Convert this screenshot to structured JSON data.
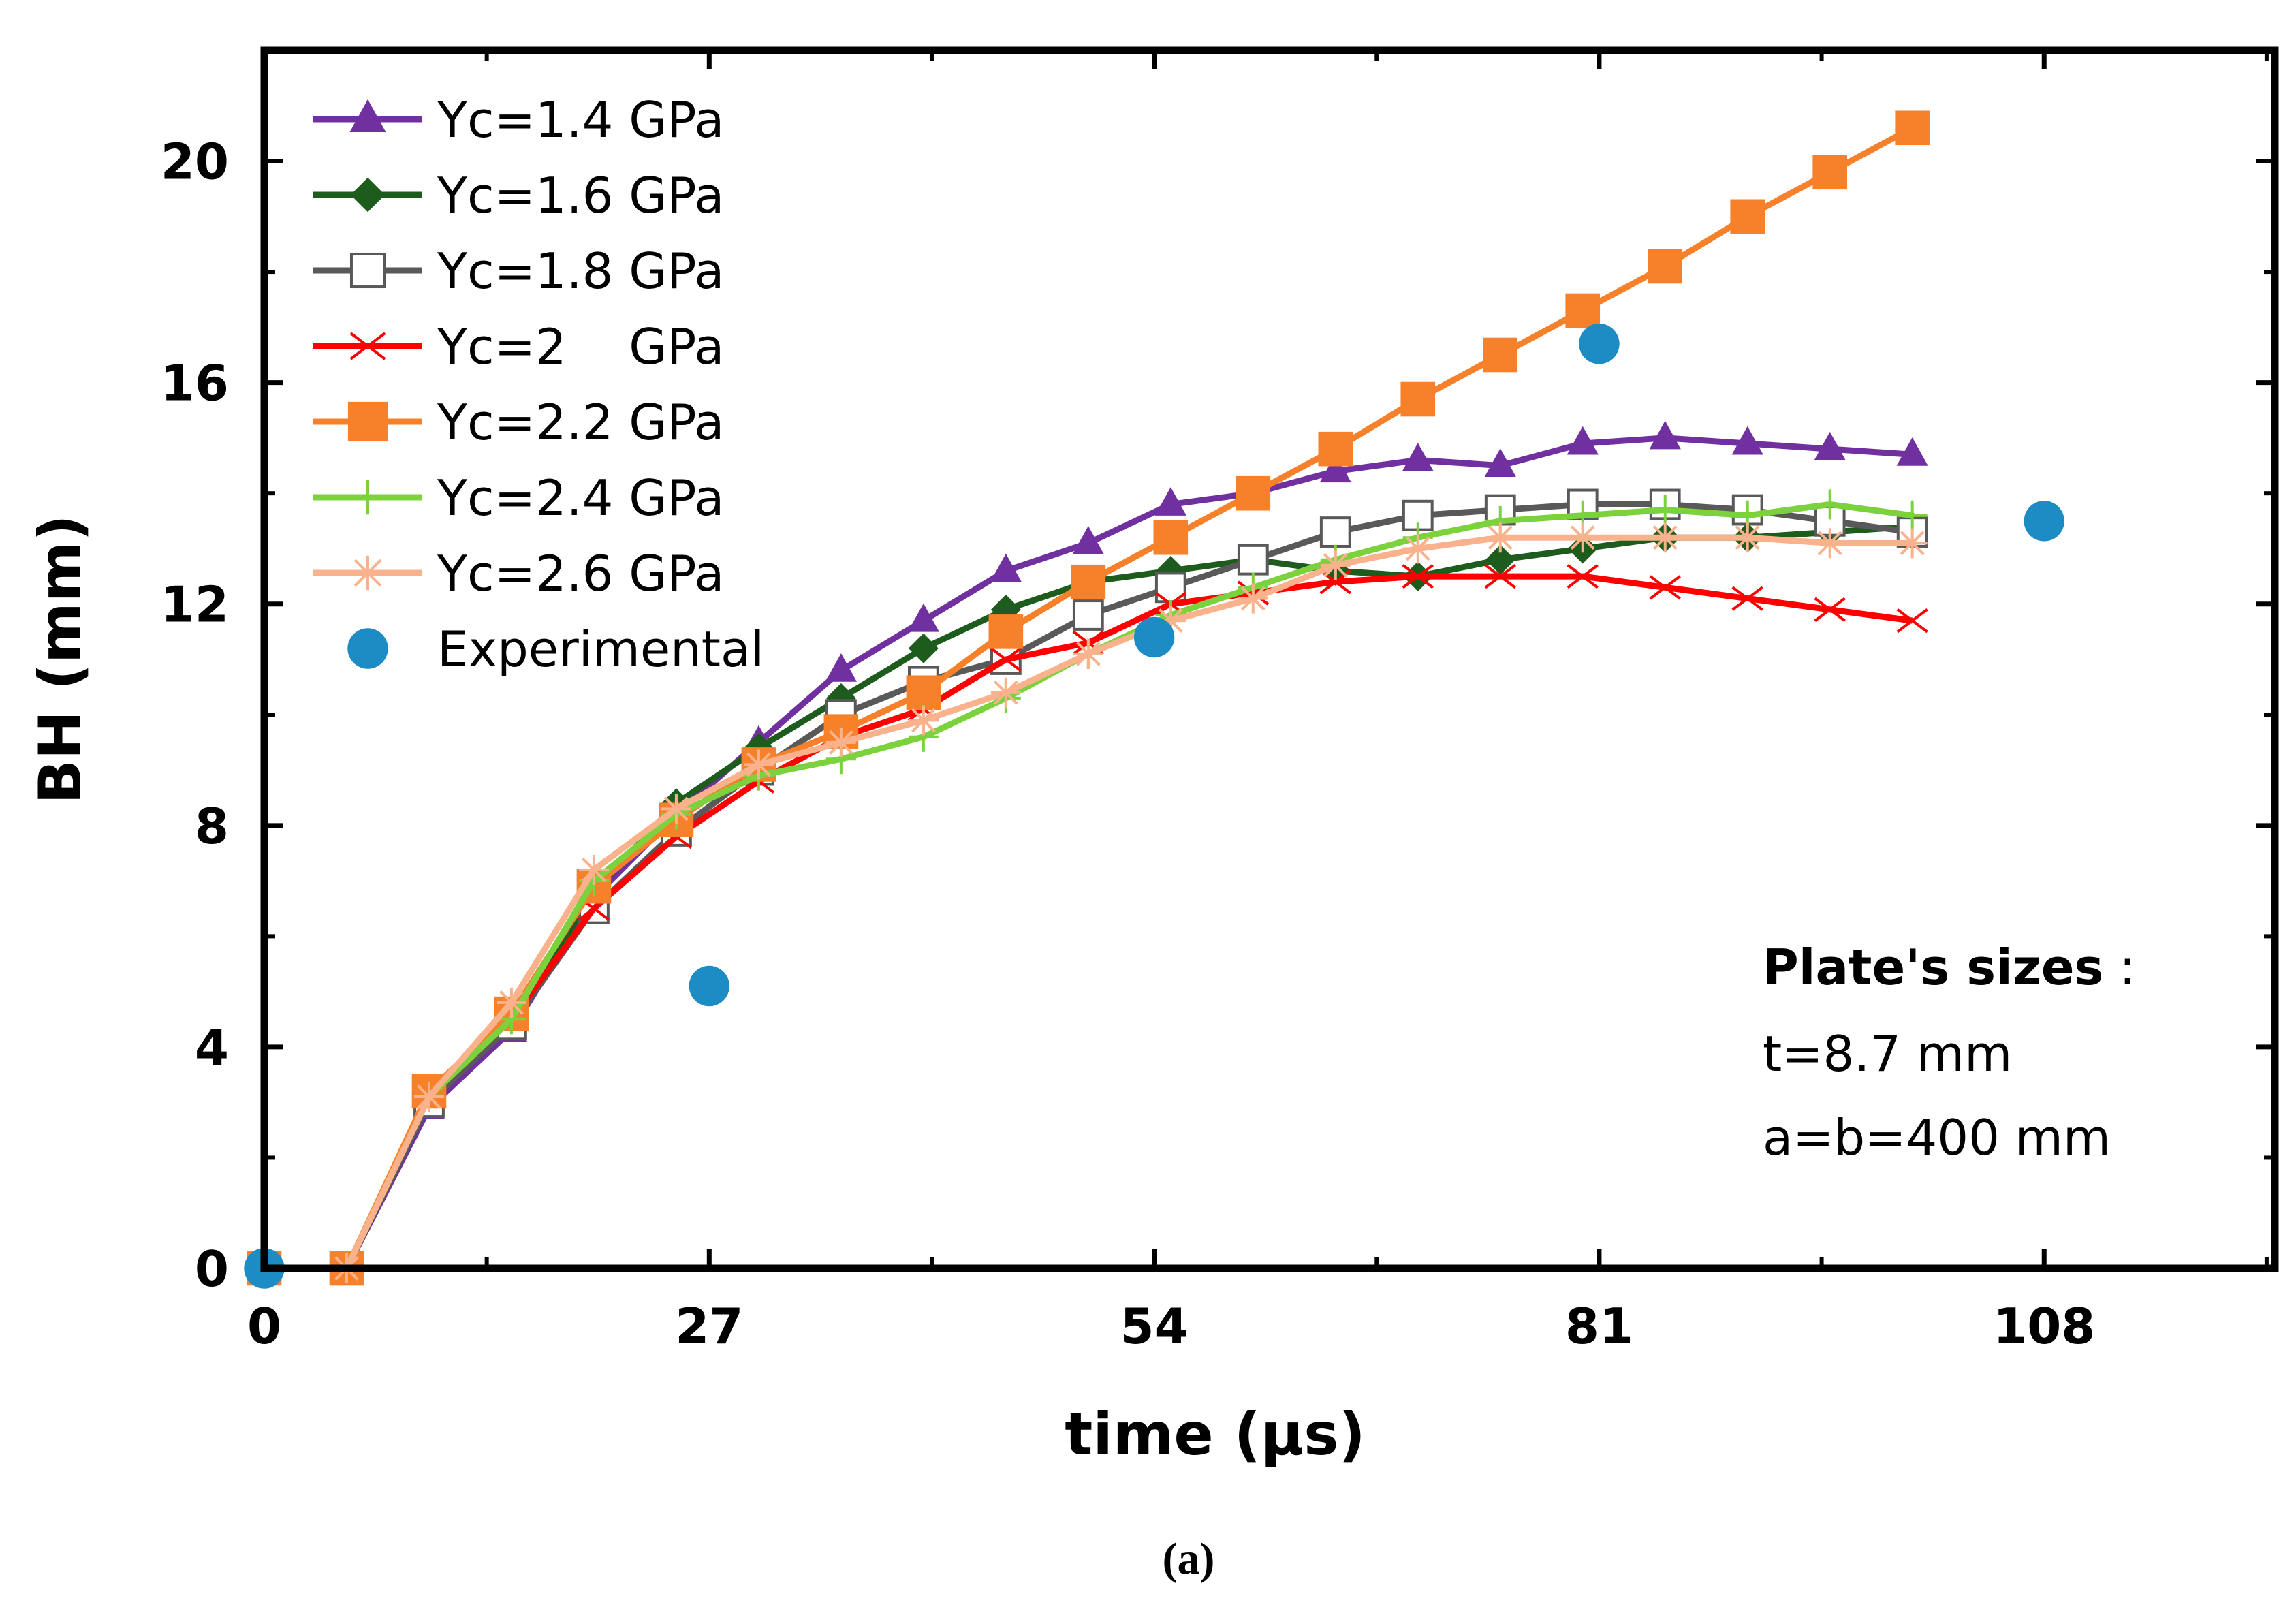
{
  "chart_data": {
    "type": "line",
    "title": "",
    "xlabel": "time (µs)",
    "ylabel": "BH (mm)",
    "xlim": [
      0,
      122
    ],
    "ylim": [
      0,
      22
    ],
    "x_ticks": [
      0,
      27,
      54,
      81,
      108
    ],
    "x_tick_labels": [
      "0",
      "27",
      "54",
      "81",
      "108"
    ],
    "y_ticks": [
      0,
      4,
      8,
      12,
      16,
      20
    ],
    "y_tick_labels": [
      "0",
      "4",
      "8",
      "12",
      "16",
      "20"
    ],
    "x": [
      0,
      5,
      10,
      15,
      20,
      25,
      30,
      35,
      40,
      45,
      50,
      55,
      60,
      65,
      70,
      75,
      80,
      85,
      90,
      95,
      100
    ],
    "series": [
      {
        "name": "Yc=1.4 GPa",
        "color": "#7030a0",
        "marker": "triangle",
        "values": [
          0,
          0,
          2.9,
          4.3,
          6.7,
          8.2,
          9.5,
          10.8,
          11.7,
          12.6,
          13.1,
          13.8,
          14.0,
          14.4,
          14.6,
          14.5,
          14.9,
          15.0,
          14.9,
          14.8,
          14.7
        ]
      },
      {
        "name": "Yc=1.6 GPa",
        "color": "#1e5c1e",
        "marker": "diamond",
        "values": [
          0,
          0,
          3.0,
          4.4,
          6.8,
          8.4,
          9.4,
          10.3,
          11.2,
          11.9,
          12.4,
          12.6,
          12.8,
          12.6,
          12.5,
          12.8,
          13.0,
          13.2,
          13.2,
          13.3,
          13.4
        ]
      },
      {
        "name": "Yc=1.8 GPa",
        "color": "#595959",
        "marker": "square-open",
        "values": [
          0,
          0,
          3.0,
          4.4,
          6.5,
          7.9,
          9.0,
          10.0,
          10.6,
          11.0,
          11.8,
          12.3,
          12.8,
          13.3,
          13.6,
          13.7,
          13.8,
          13.8,
          13.7,
          13.5,
          13.3
        ]
      },
      {
        "name": "Yc=2    GPa",
        "color": "#ff0000",
        "marker": "x",
        "values": [
          0,
          0,
          3.1,
          4.5,
          6.5,
          7.8,
          8.8,
          9.6,
          10.1,
          11.0,
          11.3,
          12.0,
          12.2,
          12.4,
          12.5,
          12.5,
          12.5,
          12.3,
          12.1,
          11.9,
          11.7
        ]
      },
      {
        "name": "Yc=2.2 GPa",
        "color": "#f7812a",
        "marker": "square",
        "values": [
          0,
          0,
          3.2,
          4.6,
          6.9,
          8.1,
          9.1,
          9.7,
          10.4,
          11.5,
          12.4,
          13.2,
          14.0,
          14.8,
          15.7,
          16.5,
          17.3,
          18.1,
          19.0,
          19.8,
          20.6
        ]
      },
      {
        "name": "Yc=2.4 GPa",
        "color": "#7cd23c",
        "marker": "plus",
        "values": [
          0,
          0,
          3.1,
          4.5,
          7.0,
          8.2,
          8.9,
          9.2,
          9.6,
          10.3,
          11.1,
          11.8,
          12.3,
          12.8,
          13.2,
          13.5,
          13.6,
          13.7,
          13.6,
          13.8,
          13.6
        ]
      },
      {
        "name": "Yc=2.6 GPa",
        "color": "#f9b28c",
        "marker": "asterisk",
        "values": [
          0,
          0,
          3.1,
          4.8,
          7.2,
          8.3,
          9.1,
          9.5,
          9.9,
          10.4,
          11.1,
          11.7,
          12.1,
          12.7,
          13.0,
          13.2,
          13.2,
          13.2,
          13.2,
          13.1,
          13.1
        ]
      }
    ],
    "experimental": {
      "name": "Experimental",
      "color": "#1d8bc4",
      "marker": "circle",
      "x": [
        0,
        27,
        54,
        81,
        108
      ],
      "values": [
        0,
        5.1,
        11.4,
        16.7,
        13.5
      ]
    },
    "legend_position": "top-left",
    "annotation": {
      "title": "Plate's sizes",
      "title_suffix": " :",
      "lines": [
        "t=8.7 mm",
        "a=b=400 mm"
      ]
    },
    "caption": "(a)"
  }
}
